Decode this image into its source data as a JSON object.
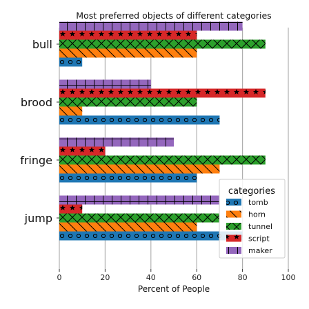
{
  "chart_data": {
    "type": "bar",
    "orientation": "horizontal",
    "title": "Most preferred objects of different categories",
    "xlabel": "Percent of People",
    "ylabel": "",
    "xlim": [
      0,
      100
    ],
    "xticks": [
      0,
      20,
      40,
      60,
      80,
      100
    ],
    "grid": true,
    "categories": [
      "bull",
      "brood",
      "fringe",
      "jump"
    ],
    "series": [
      {
        "name": "tomb",
        "color": "#1f77b4",
        "hatch": "circles",
        "values": [
          10,
          70,
          60,
          80
        ]
      },
      {
        "name": "horn",
        "color": "#ff7f0e",
        "hatch": "backslash",
        "values": [
          60,
          10,
          70,
          60
        ]
      },
      {
        "name": "tunnel",
        "color": "#2ca02c",
        "hatch": "cross",
        "values": [
          90,
          60,
          90,
          70
        ]
      },
      {
        "name": "script",
        "color": "#d62728",
        "hatch": "stars",
        "values": [
          60,
          90,
          20,
          10
        ]
      },
      {
        "name": "maker",
        "color": "#9467bd",
        "hatch": "plus",
        "values": [
          80,
          40,
          50,
          70
        ]
      }
    ],
    "legend": {
      "title": "categories",
      "placement": "bottom-right"
    }
  }
}
